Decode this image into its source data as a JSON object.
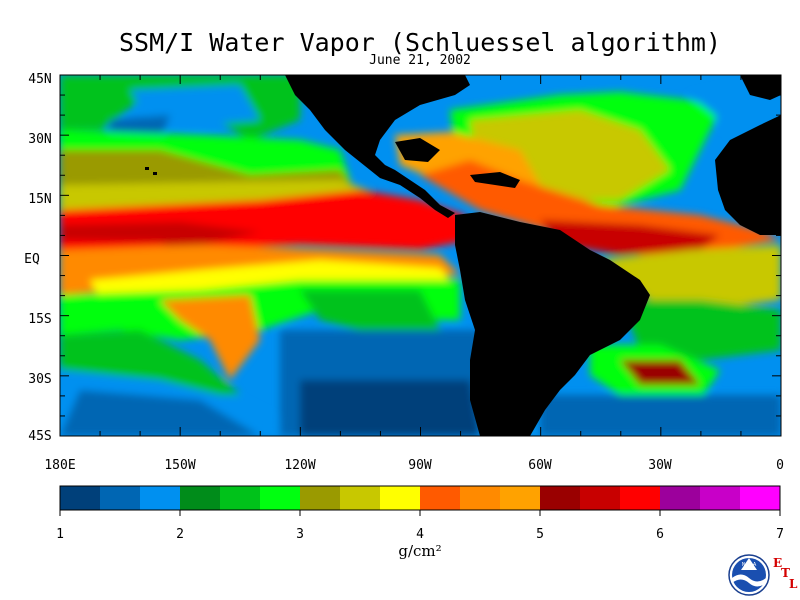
{
  "title": "SSM/I Water Vapor (Schluessel algorithm)",
  "subtitle": "June 21, 2002",
  "map": {
    "lat_labels": [
      "45N",
      "30N",
      "15N",
      "EQ",
      "15S",
      "30S",
      "45S"
    ],
    "lon_labels": [
      "180E",
      "150W",
      "120W",
      "90W",
      "60W",
      "30W",
      "0"
    ]
  },
  "colorbar": {
    "colors": [
      "#00407a",
      "#0066b3",
      "#0090f0",
      "#008c1a",
      "#00c21a",
      "#00ff10",
      "#9a9a00",
      "#c8c800",
      "#ffff00",
      "#ff5a00",
      "#ff8a00",
      "#ffa200",
      "#9a0000",
      "#c80000",
      "#ff0000",
      "#9c009c",
      "#c800c8",
      "#ff00ff"
    ],
    "labels": [
      "1",
      "2",
      "3",
      "4",
      "5",
      "6",
      "7"
    ],
    "unit": "g/cm²"
  },
  "logo": {
    "text": "NOAA",
    "letters": [
      "E",
      "T",
      "L"
    ]
  }
}
